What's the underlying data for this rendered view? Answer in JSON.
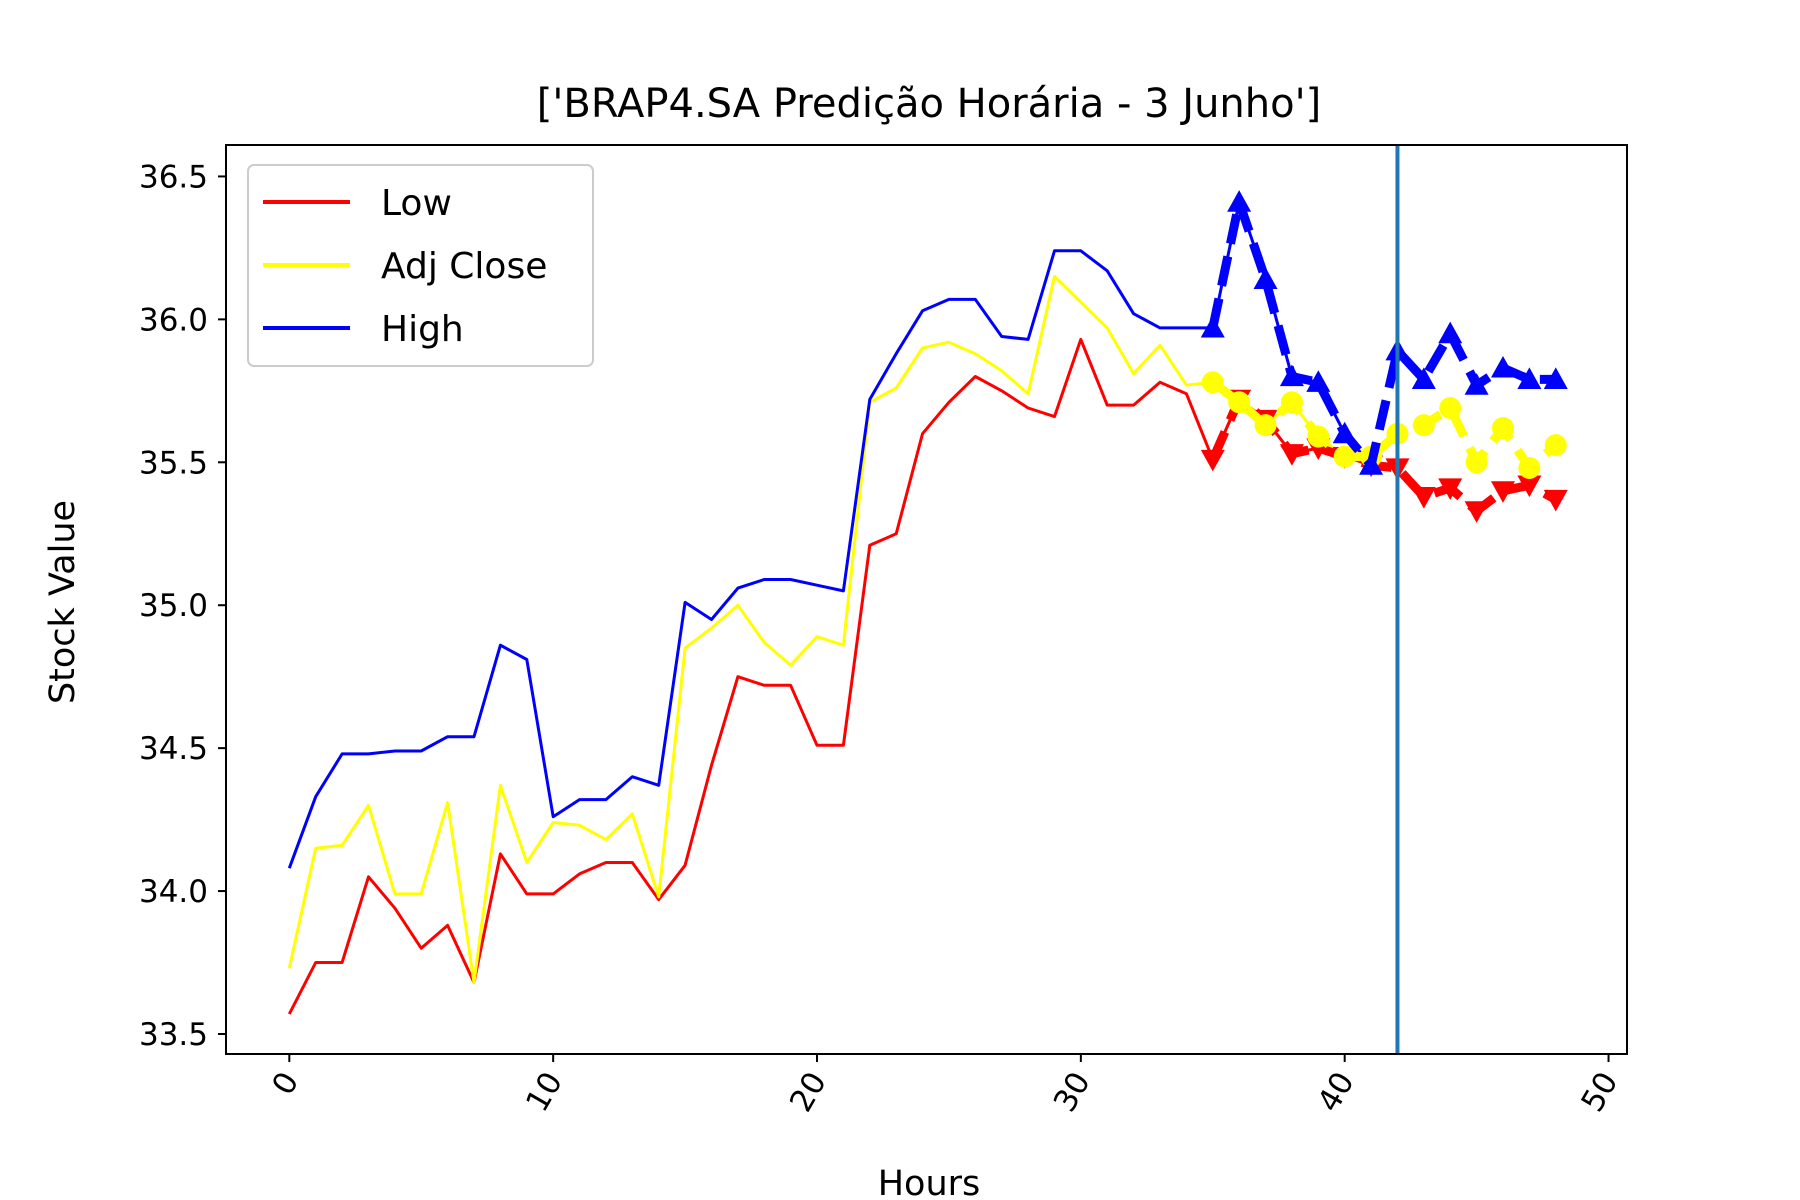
{
  "chart_data": {
    "type": "line",
    "title": "['BRAP4.SA Predição Horária - 3 Junho']",
    "xlabel": "Hours",
    "ylabel": "Stock Value",
    "xlim": [
      -2.4,
      50.7
    ],
    "ylim": [
      33.43,
      36.61
    ],
    "xticks": [
      0,
      10,
      20,
      30,
      40,
      50
    ],
    "xtick_labels": [
      "0",
      "10",
      "20",
      "30",
      "40",
      "50"
    ],
    "yticks": [
      33.5,
      34.0,
      34.5,
      35.0,
      35.5,
      36.0,
      36.5
    ],
    "ytick_labels": [
      "33.5",
      "34.0",
      "34.5",
      "35.0",
      "35.5",
      "36.0",
      "36.5"
    ],
    "legend_position": "upper-left",
    "vline_x": 42,
    "vline_color": "#1f77b4",
    "series": [
      {
        "name": "Low",
        "color": "#ff0000",
        "x": [
          0,
          1,
          2,
          3,
          4,
          5,
          6,
          7,
          8,
          9,
          10,
          11,
          12,
          13,
          14,
          15,
          16,
          17,
          18,
          19,
          20,
          21,
          22,
          23,
          24,
          25,
          26,
          27,
          28,
          29,
          30,
          31,
          32,
          33,
          34,
          35,
          36,
          37,
          38,
          39,
          40,
          41
        ],
        "values": [
          33.57,
          33.75,
          33.75,
          34.05,
          33.94,
          33.8,
          33.88,
          33.68,
          34.13,
          33.99,
          33.99,
          34.06,
          34.1,
          34.1,
          33.97,
          34.09,
          34.44,
          34.75,
          34.72,
          34.72,
          34.51,
          34.51,
          35.21,
          35.25,
          35.6,
          35.71,
          35.8,
          35.75,
          35.69,
          35.66,
          35.93,
          35.7,
          35.7,
          35.78,
          35.74,
          35.51,
          35.72,
          35.65,
          35.53,
          35.55,
          35.52,
          35.49
        ]
      },
      {
        "name": "Adj Close",
        "color": "#ffff00",
        "x": [
          0,
          1,
          2,
          3,
          4,
          5,
          6,
          7,
          8,
          9,
          10,
          11,
          12,
          13,
          14,
          15,
          16,
          17,
          18,
          19,
          20,
          21,
          22,
          23,
          24,
          25,
          26,
          27,
          28,
          29,
          30,
          31,
          32,
          33,
          34,
          35,
          36,
          37,
          38,
          39,
          40,
          41
        ],
        "values": [
          33.73,
          34.15,
          34.16,
          34.3,
          33.99,
          33.99,
          34.31,
          33.68,
          34.37,
          34.1,
          34.24,
          34.23,
          34.18,
          34.27,
          33.98,
          34.85,
          34.92,
          35.0,
          34.87,
          34.79,
          34.89,
          34.86,
          35.71,
          35.76,
          35.9,
          35.92,
          35.88,
          35.82,
          35.74,
          36.15,
          36.06,
          35.97,
          35.81,
          35.91,
          35.77,
          35.78,
          35.71,
          35.63,
          35.71,
          35.59,
          35.52,
          35.52
        ]
      },
      {
        "name": "High",
        "color": "#0000ff",
        "x": [
          0,
          1,
          2,
          3,
          4,
          5,
          6,
          7,
          8,
          9,
          10,
          11,
          12,
          13,
          14,
          15,
          16,
          17,
          18,
          19,
          20,
          21,
          22,
          23,
          24,
          25,
          26,
          27,
          28,
          29,
          30,
          31,
          32,
          33,
          34,
          35,
          36,
          37,
          38,
          39,
          40,
          41
        ],
        "values": [
          34.08,
          34.33,
          34.48,
          34.48,
          34.49,
          34.49,
          34.54,
          34.54,
          34.86,
          34.81,
          34.26,
          34.32,
          34.32,
          34.4,
          34.37,
          35.01,
          34.95,
          35.06,
          35.09,
          35.09,
          35.07,
          35.05,
          35.72,
          35.88,
          36.03,
          36.07,
          36.07,
          35.94,
          35.93,
          36.24,
          36.24,
          36.17,
          36.02,
          35.97,
          35.97,
          35.97,
          36.41,
          36.14,
          35.8,
          35.78,
          35.6,
          35.49
        ]
      }
    ],
    "prediction_series": [
      {
        "name": "Low",
        "color": "#ff0000",
        "marker": "triangle-down",
        "x": [
          35,
          36,
          37,
          38,
          39,
          40,
          41,
          42,
          43,
          44,
          45,
          46,
          47,
          48
        ],
        "values": [
          35.51,
          35.72,
          35.65,
          35.53,
          35.55,
          35.52,
          35.49,
          35.48,
          35.38,
          35.41,
          35.33,
          35.4,
          35.42,
          35.37
        ]
      },
      {
        "name": "Adj Close",
        "color": "#ffff00",
        "marker": "circle",
        "x": [
          35,
          36,
          37,
          38,
          39,
          40,
          41,
          42,
          43,
          44,
          45,
          46,
          47,
          48
        ],
        "values": [
          35.78,
          35.71,
          35.63,
          35.71,
          35.59,
          35.52,
          35.52,
          35.6,
          35.63,
          35.69,
          35.5,
          35.62,
          35.48,
          35.56
        ]
      },
      {
        "name": "High",
        "color": "#0000ff",
        "marker": "triangle-up",
        "x": [
          35,
          36,
          37,
          38,
          39,
          40,
          41,
          42,
          43,
          44,
          45,
          46,
          47,
          48
        ],
        "values": [
          35.97,
          36.41,
          36.14,
          35.8,
          35.78,
          35.6,
          35.49,
          35.89,
          35.79,
          35.95,
          35.77,
          35.83,
          35.79,
          35.79
        ]
      }
    ]
  }
}
